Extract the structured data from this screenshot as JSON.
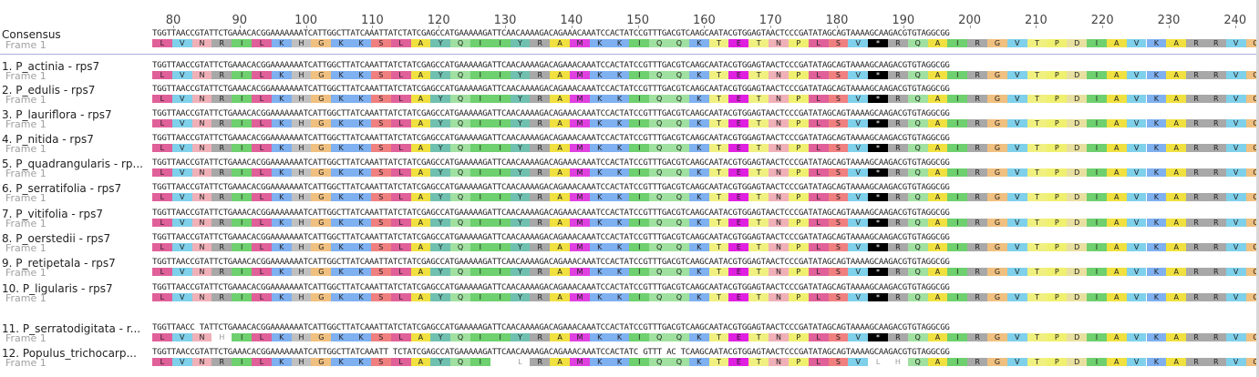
{
  "ruler": [
    "80",
    "90",
    "100",
    "110",
    "120",
    "130",
    "140",
    "150",
    "160",
    "170",
    "180",
    "190",
    "200",
    "210",
    "220",
    "230",
    "240"
  ],
  "consensus": {
    "name": "Consensus",
    "frame": "Frame 1",
    "seq": "TGGTTAACCGTATTCTGAAACACGGAAAAAAATCATTGGCTTATCAAATTATCTATCGAGCCATGAAAAAGATTCAACAAAAGACAGAAACAAATCCACTATCCGTTTGACGTCAAGCAATACGTGGAGTAACTCCCGATATAGCAGTAAAAGCAAGACGTGTAGGCGG"
  },
  "frame_label": "Frame 1",
  "translation": [
    "L",
    "V",
    "N",
    "R",
    "I",
    "L",
    "K",
    "H",
    "G",
    "K",
    "K",
    "S",
    "L",
    "A",
    "Y",
    "Q",
    "I",
    "I",
    "Y",
    "R",
    "A",
    "M",
    "K",
    "K",
    "I",
    "Q",
    "Q",
    "K",
    "T",
    "E",
    "T",
    "N",
    "P",
    "L",
    "S",
    "V",
    "*",
    "R",
    "Q",
    "A",
    "I",
    "R",
    "G",
    "V",
    "T",
    "P",
    "D",
    "I",
    "A",
    "V",
    "K",
    "A",
    "R",
    "R",
    "V",
    "G"
  ],
  "aa_colors": {
    "L": "#e0609a",
    "V": "#7fd0ea",
    "N": "#f0b0b8",
    "R": "#a8a8a8",
    "I": "#6ed06e",
    "K": "#7fb0f0",
    "H": "#c0c0c0",
    "G": "#f0c080",
    "S": "#f08080",
    "A": "#f0e040",
    "Y": "#70c0b0",
    "Q": "#a0e0a0",
    "M": "#e040e0",
    "T": "#f0f080",
    "E": "#e020e0",
    "P": "#f0f070",
    "D": "#e8e0a0",
    "*": "#000000"
  },
  "sequences": [
    {
      "name": "1. P_actinia - rps7",
      "seq": "TGGTTAACCGTATTCTGAAACACGGAAAAAAATCATTGGCTTATCAAATTATCTATCGAGCCATGAAAAAGATTCAACAAAAGACAGAAACAAATCCACTATCCGTTTGACGTCAAGCAATACGTGGAGTAACTCCCGATATAGCAGTAAAAGCAAGACGTGTAGGCGG",
      "gaps": []
    },
    {
      "name": "2. P_edulis - rps7",
      "seq": "TGGTTAACCGTATTCTGAAACACGGAAAAAAATCATTGGCTTATCAAATTATCTATCGAGCCATGAAAAAGATTCAACAAAAGACAGAAACAAATCCACTATCCGTTTGACGTCAAGCAATACGTGGAGTAACTCCCGATATAGCAGTAAAAGCAAGACGTGTAGGCGG",
      "gaps": []
    },
    {
      "name": "3. P_lauriflora - rps7",
      "seq": "TGGTTAACCGTATTCTGAAACACGGAAAAAAATCATTGGCTTATCAAATTATCTATCGAGCCATGAAAAAGATTCAACAAAAGACAGAAACAAATCCACTATCCGTTTGACGTCAAGCAATACGTGGAGTAACTCCCGATATAGCAGTAAAAGCAAGACGTGTAGGCGG",
      "gaps": []
    },
    {
      "name": "4. P_nitida - rps7",
      "seq": "TGGTTAACCGTATTCTGAAACACGGAAAAAAATCATTGGCTTATCAAATTATCTATCGAGCCATGAAAAAGATTCAACAAAAGACAGAAACAAATCCACTATCCGTTTGACGTCAAGCAATACGTGGAGTAACTCCCGATATAGCAGTAAAAGCAAGACGTGTAGGCGG",
      "gaps": []
    },
    {
      "name": "5. P_quadrangularis - rp...",
      "seq": "TGGTTAACCGTATTCTGAAACACGGAAAAAAATCATTGGCTTATCAAATTATCTATCGAGCCATGAAAAAGATTCAACAAAAGACAGAAACAAATCCACTATCCGTTTGACGTCAAGCAATACGTGGAGTAACTCCCGATATAGCAGTAAAAGCAAGACGTGTAGGCGG",
      "gaps": []
    },
    {
      "name": "6. P_serratifolia - rps7",
      "seq": "TGGTTAACCGTATTCTGAAACACGGAAAAAAATCATTGGCTTATCAAATTATCTATCGAGCCATGAAAAAGATTCAACAAAAGACAGAAACAAATCCACTATCCGTTTGACGTCAAGCAATACGTGGAGTAACTCCCGATATAGCAGTAAAAGCAAGACGTGTAGGCGG",
      "gaps": []
    },
    {
      "name": "7. P_vitifolia - rps7",
      "seq": "TGGTTAACCGTATTCTGAAACACGGAAAAAAATCATTGGCTTATCAAATTATCTATCGAGCCATGAAAAAGATTCAACAAAAGACAGAAACAAATCCACTATCCGTTTGACGTCAAGCAATACGTGGAGTAACTCCCGATATAGCAGTAAAAGCAAGACGTGTAGGCGG",
      "gaps": []
    },
    {
      "name": "8. P_oerstedii - rps7",
      "seq": "TGGTTAACCGTATTCTGAAACACGGAAAAAAATCATTGGCTTATCAAATTATCTATCGAGCCATGAAAAAGATTCAACAAAAGACAGAAACAAATCCACTATCCGTTTGACGTCAAGCAATACGTGGAGTAACTCCCGATATAGCAGTAAAAGCAAGACGTGTAGGCGG",
      "gaps": []
    },
    {
      "name": "9. P_retipetala - rps7",
      "seq": "TGGTTAACCGTATTCTGAAACACGGAAAAAAATCATTGGCTTATCAAATTATCTATCGAGCCATGAAAAAGATTCAACAAAAGACAGAAACAAATCCACTATCCGTTTGACGTCAAGCAATACGTGGAGTAACTCCCGATATAGCAGTAAAAGCAAGACGTGTAGGCGG",
      "gaps": []
    },
    {
      "name": "10. P_ligularis - rps7",
      "seq": "TGGTTAACCGTATTCTGAAACACGGAAAAAAATCATTGGCTTATCAAATTATCTATCGAGCCATGAAAAAGATTCAACAAAAGACAGAAACAAATCCACTATCCGTTTGACGTCAAGCAATACGTGGAGTAACTCCCGATATAGCAGTAAAAGCAAGACGTGTAGGCGG",
      "gaps": []
    },
    {
      "name": "11. P_serratodigitata - r...",
      "seq": "TGGTTAACC TATTCTGAAACACGGAAAAAAATCATTGGCTTATCAAATTATCTATCGAGCCATGAAAAAGATTCAACAAAAGACAGAAACAAATCCACTATCCGTTTGACGTCAAGCAATACGTGGAGTAACTCCCGATATAGCAGTAAAAGCAAGACGTGTAGGCGG",
      "gaps": [
        3
      ]
    },
    {
      "name": "12. Populus_trichocarp...",
      "seq": "TGGTTAACCGTATTCTGAAACACGGAAAAAAATCATTGGCTTATCAAATT TCTATCGAGCCATGAAAAAGATTCAACAAAAGACAGAAACAAATCCACTATC GTTT AC TCAAGCAATACGTGGAGTAACTCCCGATATAGCAGTAAAAGCAAGACGTGTAGGCGG",
      "gaps": [
        17,
        18,
        36,
        37
      ]
    }
  ],
  "special_aa": {
    "11": {
      "3": "H"
    },
    "12": {
      "17": "",
      "18": "L",
      "36": "L",
      "37": "H"
    }
  }
}
